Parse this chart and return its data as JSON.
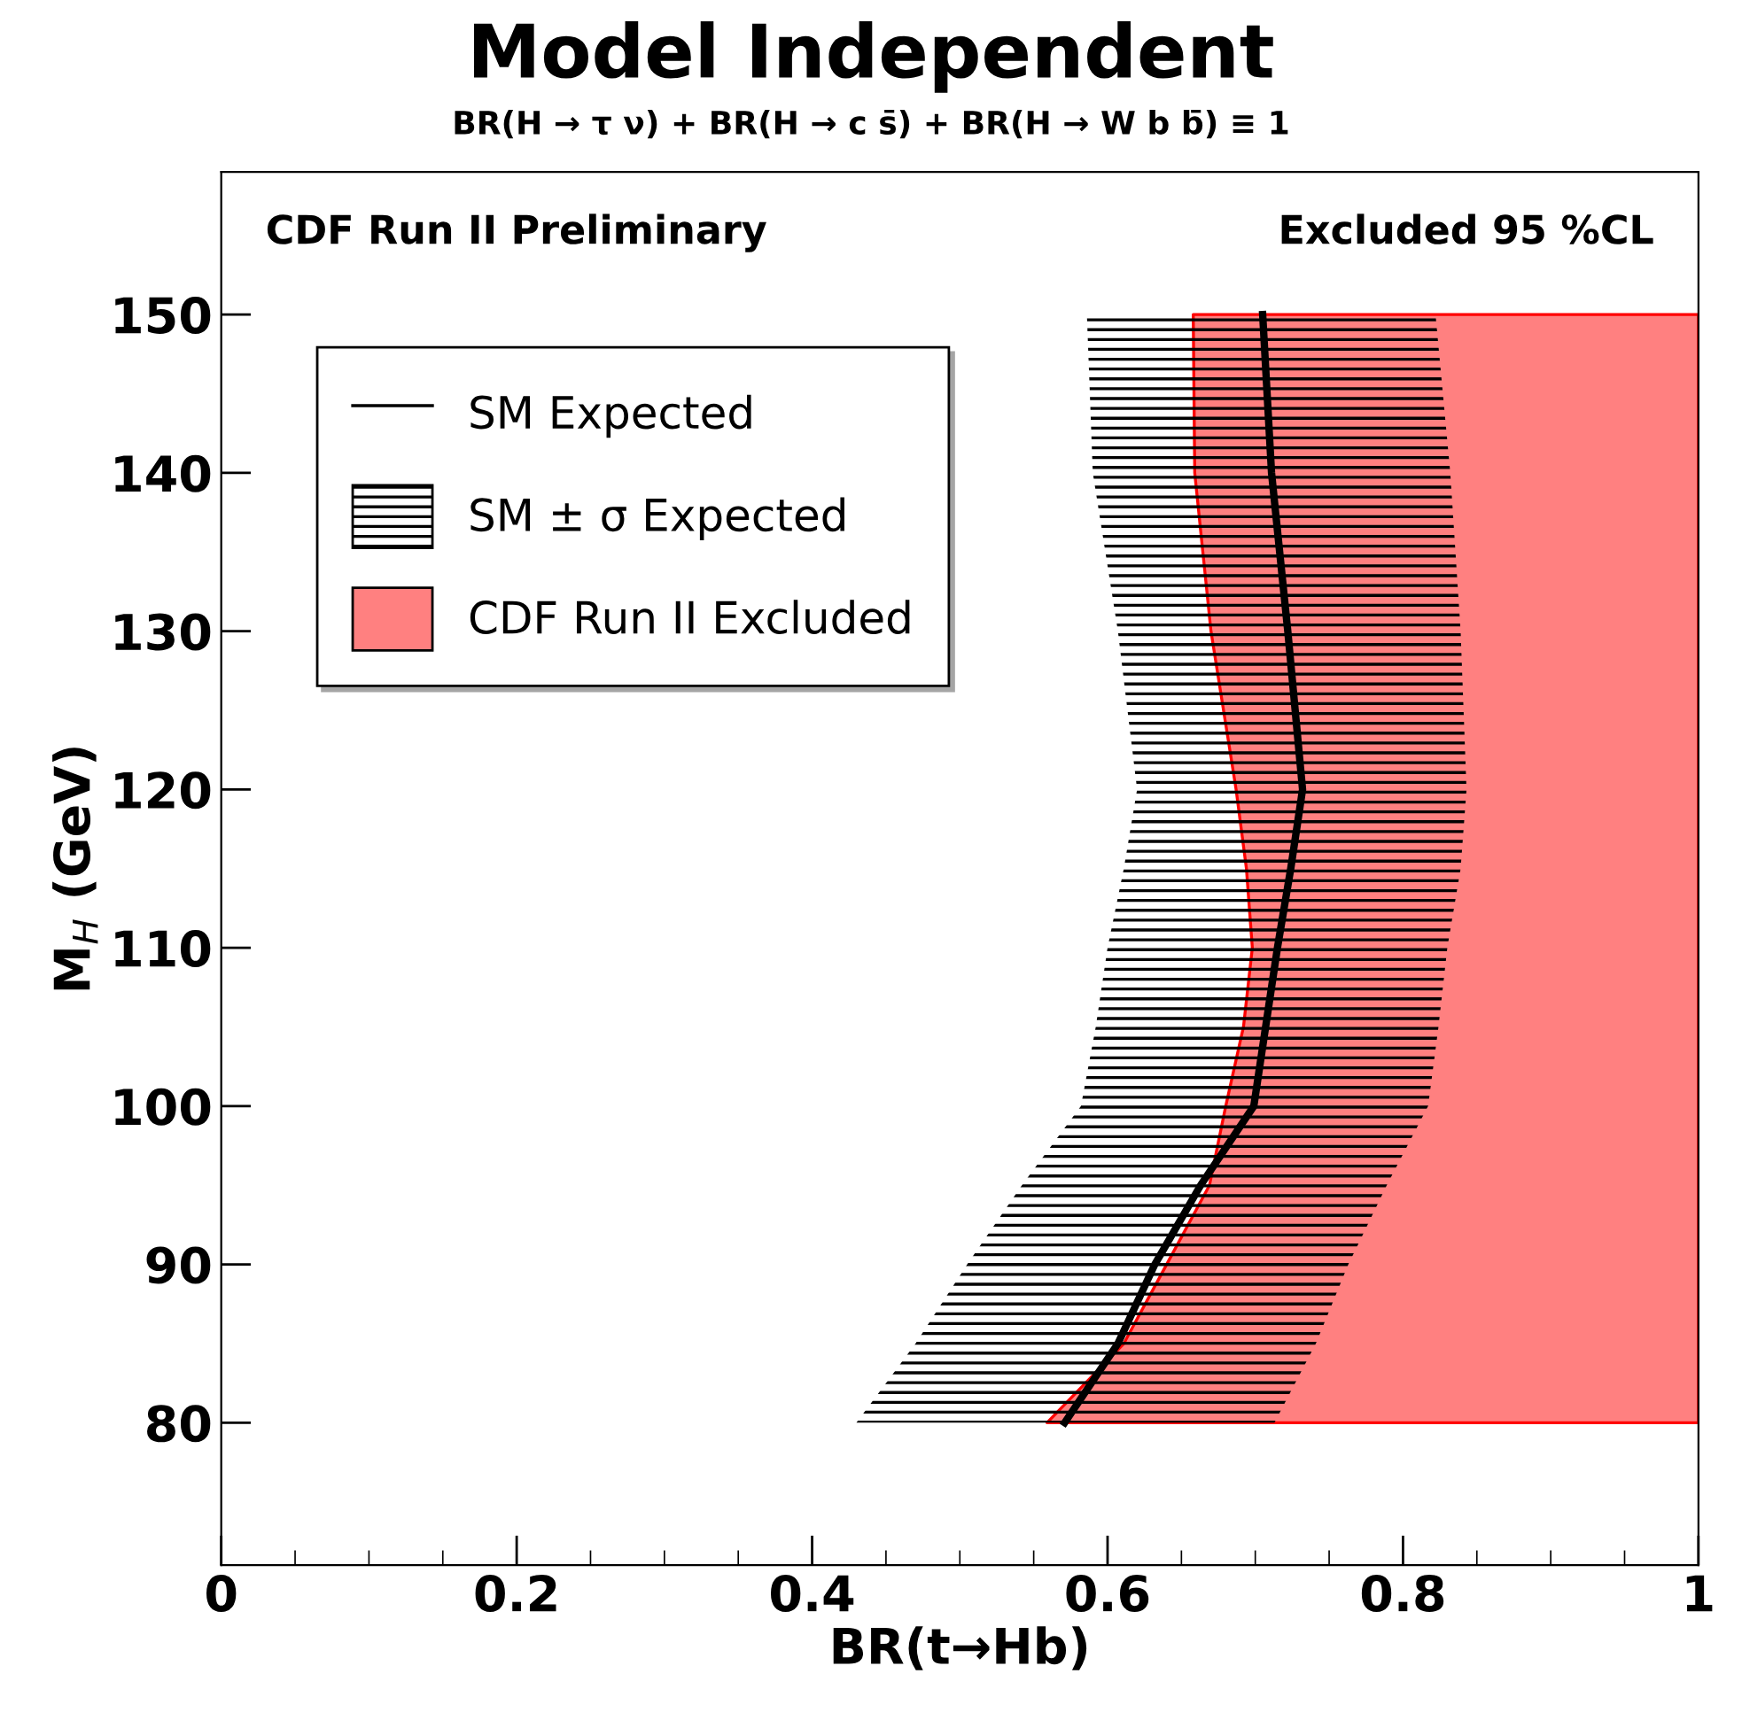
{
  "chart_data": {
    "type": "area",
    "orientation": "horizontal",
    "title": "Model Independent",
    "subtitle": "BR(H → τ ν) + BR(H → c s̄) + BR(H → W b b̄) ≡ 1",
    "xlabel": "BR(t→Hb)",
    "ylabel": "M$_{H}$ (GeV)",
    "annotations": [
      "CDF Run II Preliminary",
      "Excluded 95 %CL"
    ],
    "x": [
      80,
      85,
      90,
      95,
      100,
      105,
      110,
      115,
      120,
      130,
      140,
      150
    ],
    "xlim": [
      0,
      1
    ],
    "xticks": [
      0,
      0.2,
      0.4,
      0.6,
      0.8,
      1
    ],
    "ylim": [
      71,
      159
    ],
    "yticks": [
      80,
      90,
      100,
      110,
      120,
      130,
      140,
      150
    ],
    "legend": "top left",
    "grid": false,
    "series": [
      {
        "name": "SM Expected",
        "type": "line",
        "color": "#000000",
        "values": [
          0.571,
          0.607,
          0.632,
          0.663,
          0.699,
          0.707,
          0.715,
          0.724,
          0.732,
          0.722,
          0.711,
          0.705
        ]
      },
      {
        "name": "SM ± σ Expected",
        "color": "#000000",
        "values": [
          null,
          null,
          null,
          null,
          null,
          null,
          null,
          null,
          null,
          null,
          null,
          null
        ],
        "lower": [
          0.43,
          0.47,
          0.505,
          0.542,
          0.582,
          0.592,
          0.6,
          0.611,
          0.62,
          0.607,
          0.59,
          0.586
        ],
        "upper": [
          0.713,
          0.741,
          0.763,
          0.789,
          0.817,
          0.824,
          0.83,
          0.839,
          0.843,
          0.839,
          0.832,
          0.822
        ]
      },
      {
        "name": "CDF Run II Excluded",
        "color": "#ff8080",
        "values": [
          null,
          null,
          null,
          null,
          null,
          null,
          null,
          null,
          null,
          null,
          null,
          null
        ],
        "lower": [
          0.559,
          0.611,
          0.64,
          0.669,
          0.68,
          0.692,
          0.698,
          0.694,
          0.687,
          0.67,
          0.659,
          0.658
        ],
        "upper": [
          1,
          1,
          1,
          1,
          1,
          1,
          1,
          1,
          1,
          1,
          1,
          1
        ]
      }
    ]
  }
}
